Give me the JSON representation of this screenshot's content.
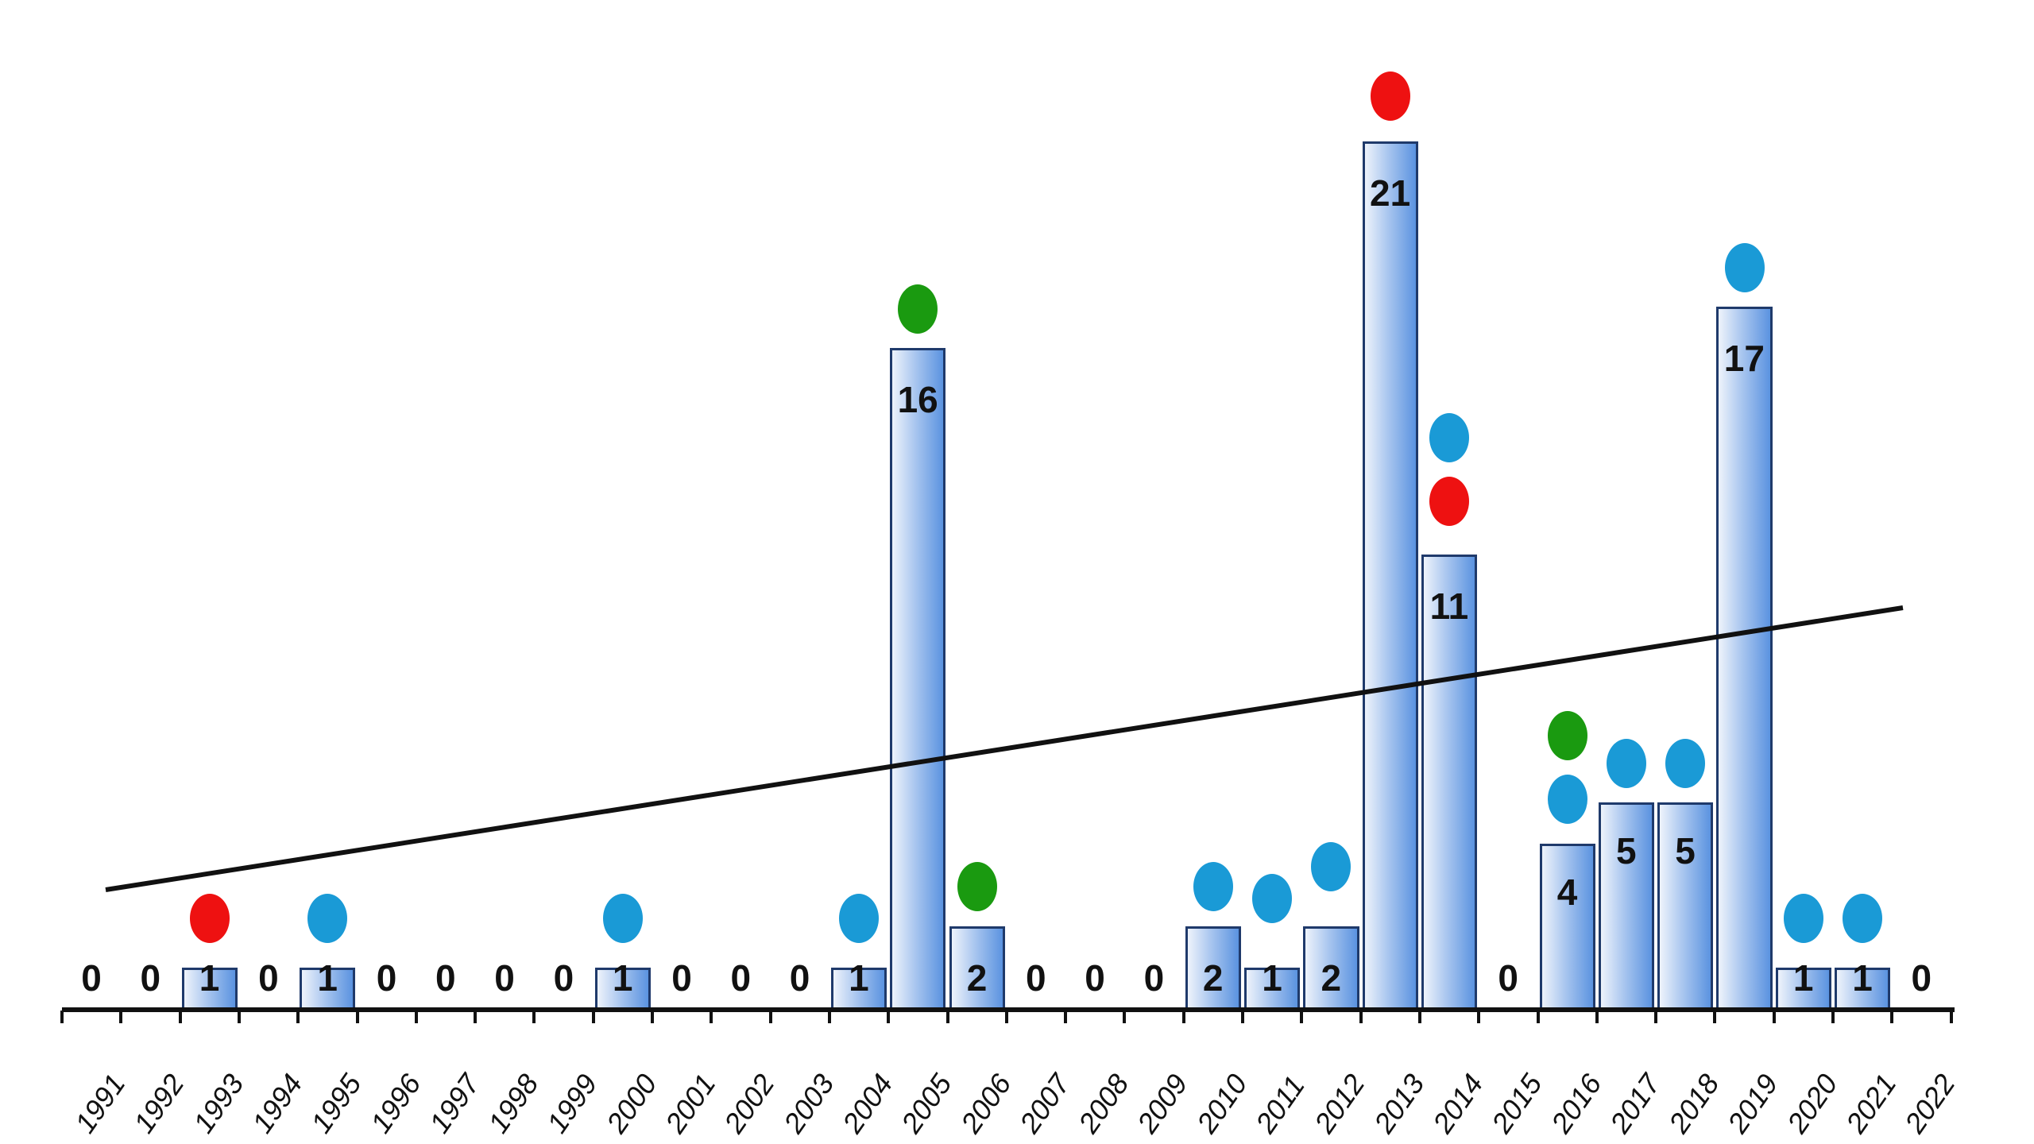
{
  "chart_data": {
    "type": "bar",
    "title": "",
    "xlabel": "",
    "ylabel": "",
    "grid": false,
    "legend": null,
    "categories": [
      "1991",
      "1992",
      "1993",
      "1994",
      "1995",
      "1996",
      "1997",
      "1998",
      "1999",
      "2000",
      "2001",
      "2002",
      "2003",
      "2004",
      "2005",
      "2006",
      "2007",
      "2008",
      "2009",
      "2010",
      "2011",
      "2012",
      "2013",
      "2014",
      "2015",
      "2016",
      "2017",
      "2018",
      "2019",
      "2020",
      "2021",
      "2022"
    ],
    "values": [
      0,
      0,
      1,
      0,
      1,
      0,
      0,
      0,
      0,
      1,
      0,
      0,
      0,
      1,
      16,
      2,
      0,
      0,
      0,
      2,
      1,
      2,
      21,
      11,
      0,
      4,
      5,
      5,
      17,
      1,
      1,
      0
    ],
    "ylim": [
      0,
      22
    ],
    "data_labels": true,
    "trendline": {
      "type": "linear",
      "start": {
        "x": "1991",
        "y": 2.9
      },
      "end": {
        "x": "2022",
        "y": 9.7
      },
      "color": "#111111"
    },
    "markers": [
      {
        "year": "1993",
        "colors": [
          "red"
        ]
      },
      {
        "year": "1995",
        "colors": [
          "blue"
        ]
      },
      {
        "year": "2000",
        "colors": [
          "blue"
        ]
      },
      {
        "year": "2004",
        "colors": [
          "blue"
        ]
      },
      {
        "year": "2005",
        "colors": [
          "green"
        ]
      },
      {
        "year": "2006",
        "colors": [
          "green"
        ]
      },
      {
        "year": "2010",
        "colors": [
          "blue"
        ]
      },
      {
        "year": "2011",
        "colors": [
          "blue"
        ]
      },
      {
        "year": "2012",
        "colors": [
          "blue"
        ]
      },
      {
        "year": "2013",
        "colors": [
          "red"
        ]
      },
      {
        "year": "2014",
        "colors": [
          "red",
          "blue"
        ]
      },
      {
        "year": "2016",
        "colors": [
          "blue",
          "green"
        ]
      },
      {
        "year": "2017",
        "colors": [
          "blue"
        ]
      },
      {
        "year": "2018",
        "colors": [
          "blue"
        ]
      },
      {
        "year": "2019",
        "colors": [
          "blue"
        ]
      },
      {
        "year": "2020",
        "colors": [
          "blue"
        ]
      },
      {
        "year": "2021",
        "colors": [
          "blue"
        ]
      }
    ]
  },
  "colors": {
    "red": "#ee1111",
    "blue": "#1a9ad6",
    "green": "#1a9a10",
    "bar_border": "#1f3a6b",
    "axis": "#111111"
  }
}
